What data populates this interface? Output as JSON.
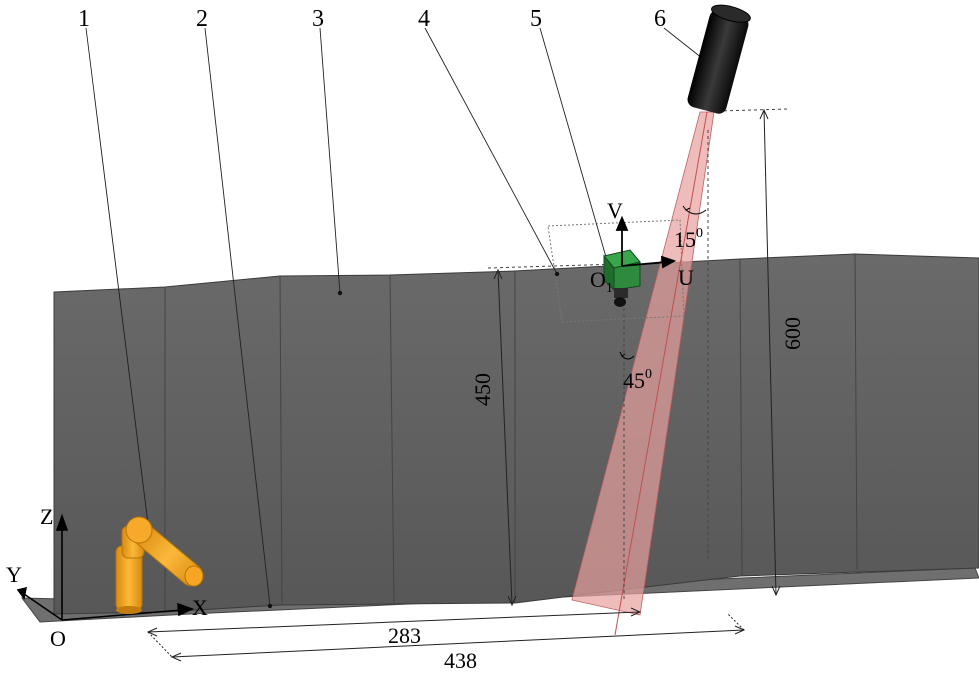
{
  "callouts": [
    "1",
    "2",
    "3",
    "4",
    "5",
    "6"
  ],
  "dimensions": {
    "height_wall": "450",
    "height_laser": "600",
    "horiz_short": "283",
    "horiz_long": "438"
  },
  "angles": {
    "laser_tilt_value": "15",
    "laser_tilt_sup": "0",
    "camera_angle_value": "45",
    "camera_angle_sup": "0"
  },
  "axes": {
    "world_origin": "O",
    "world_x": "X",
    "world_y": "Y",
    "world_z": "Z",
    "cam_u": "U",
    "cam_v": "V",
    "cam_origin": "O",
    "cam_origin_sub": "1"
  },
  "colors": {
    "wall": "#5f5f5f",
    "wall_top": "#6b6b6b",
    "floor": "#6e6e6e",
    "robot": "#f4a623",
    "camera": "#2e8b3e",
    "laser_body": "#1a1a1a",
    "beam": "#e8a0a0"
  }
}
